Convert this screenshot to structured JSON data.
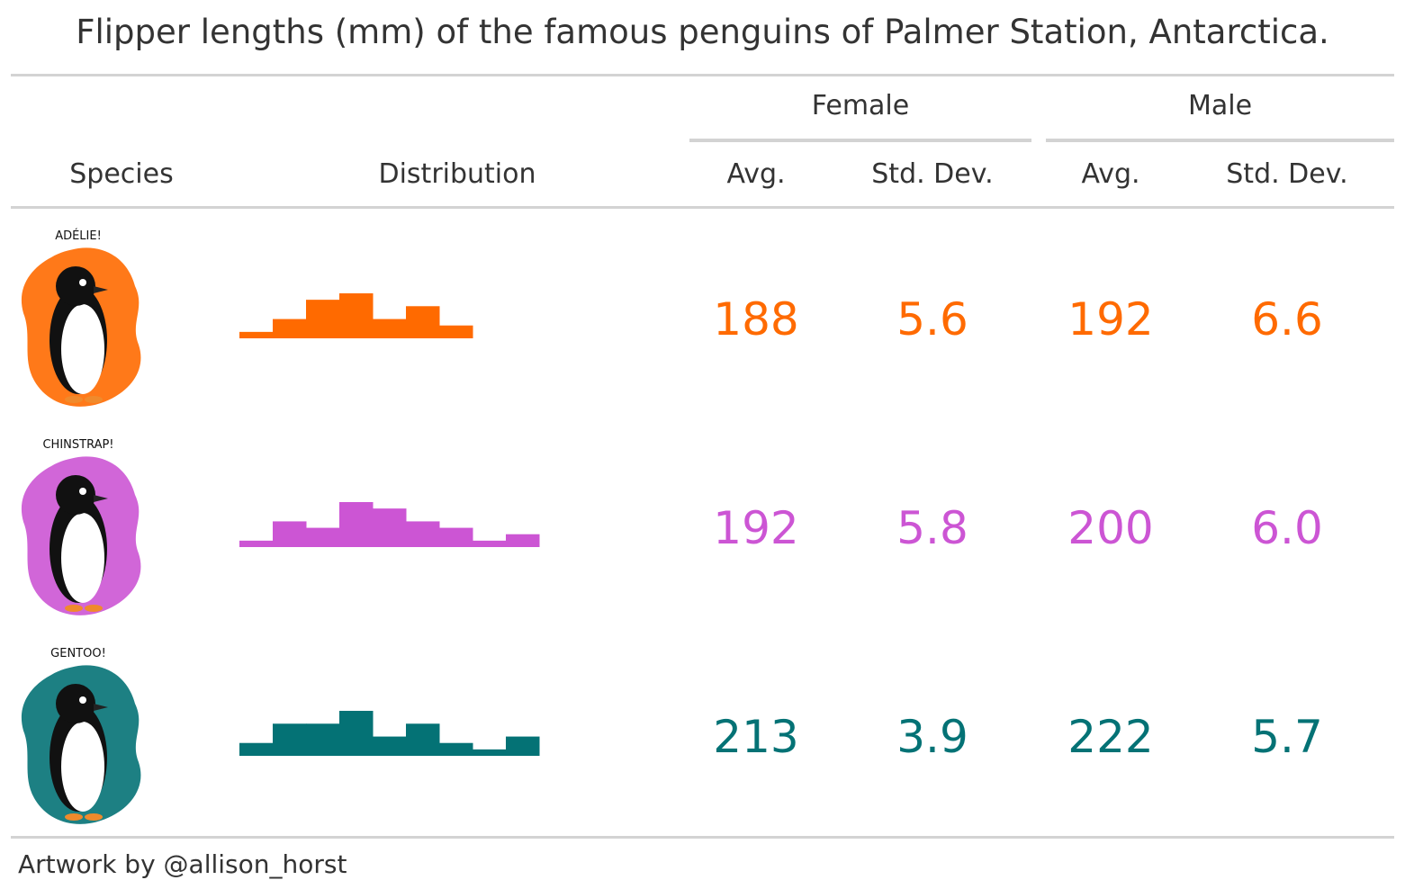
{
  "title": "Flipper lengths (mm) of the famous penguins of Palmer Station, Antarctica.",
  "spanners": {
    "female": "Female",
    "male": "Male"
  },
  "columns": {
    "species": "Species",
    "distribution": "Distribution",
    "female_avg": "Avg.",
    "female_sd": "Std. Dev.",
    "male_avg": "Avg.",
    "male_sd": "Std. Dev."
  },
  "credit": "Artwork by @allison_horst",
  "chart_data": {
    "type": "table",
    "rows": [
      {
        "art_label": "ADÉLIE!",
        "color": "#ff6a00",
        "female_avg": "188",
        "female_sd": "5.6",
        "male_avg": "192",
        "male_sd": "6.6",
        "histogram": [
          1,
          3,
          6,
          7,
          3,
          5,
          2
        ]
      },
      {
        "art_label": "CHINSTRAP!",
        "color": "#cc55d4",
        "female_avg": "192",
        "female_sd": "5.8",
        "male_avg": "200",
        "male_sd": "6.0",
        "histogram": [
          1,
          4,
          3,
          7,
          6,
          4,
          3,
          1,
          2
        ]
      },
      {
        "art_label": "GENTOO!",
        "color": "#047275",
        "female_avg": "213",
        "female_sd": "3.9",
        "male_avg": "222",
        "male_sd": "5.7",
        "histogram": [
          2,
          5,
          5,
          7,
          3,
          5,
          2,
          1,
          3
        ]
      }
    ]
  }
}
